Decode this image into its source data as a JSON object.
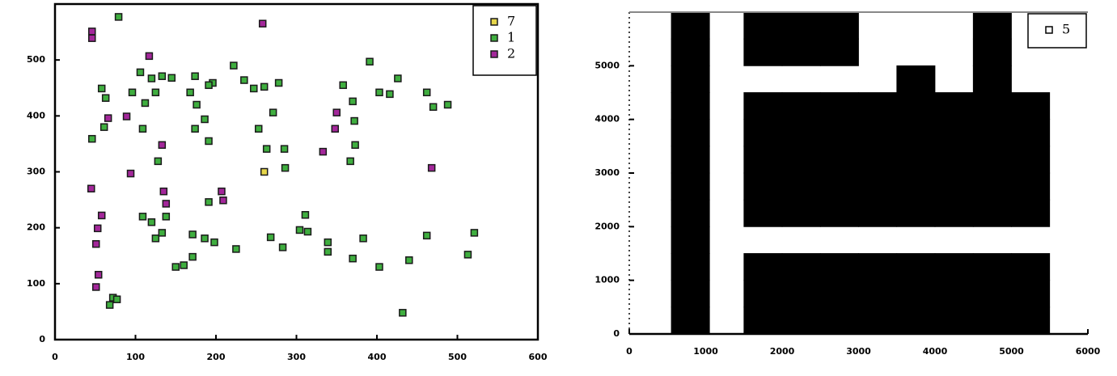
{
  "chart_data": [
    {
      "type": "scatter",
      "legend": "upper right",
      "xlim": [
        0,
        600
      ],
      "ylim": [
        0,
        600
      ],
      "xticks": [
        0,
        100,
        200,
        300,
        400,
        500,
        600
      ],
      "yticks": [
        0,
        100,
        200,
        300,
        400,
        500
      ],
      "series": [
        {
          "name": "7",
          "color": "#e6d64a",
          "x": [
            260
          ],
          "y": [
            300
          ]
        },
        {
          "name": "1",
          "color": "#3fae3f",
          "x": [
            79,
            46,
            58,
            63,
            61,
            106,
            120,
            133,
            145,
            112,
            125,
            96,
            109,
            128,
            174,
            168,
            176,
            174,
            191,
            196,
            186,
            222,
            235,
            247,
            260,
            278,
            271,
            253,
            263,
            285,
            286,
            391,
            358,
            370,
            372,
            373,
            367,
            403,
            416,
            426,
            462,
            470,
            488,
            191,
            109,
            120,
            125,
            138,
            133,
            171,
            186,
            198,
            171,
            160,
            150,
            225,
            268,
            283,
            311,
            304,
            314,
            339,
            339,
            370,
            383,
            403,
            440,
            462,
            513,
            521,
            432,
            72,
            68,
            77,
            191
          ],
          "y": [
            577,
            359,
            449,
            432,
            380,
            478,
            467,
            471,
            468,
            423,
            442,
            442,
            377,
            319,
            471,
            442,
            420,
            377,
            355,
            459,
            394,
            490,
            464,
            449,
            452,
            459,
            406,
            377,
            341,
            341,
            307,
            497,
            455,
            426,
            391,
            348,
            319,
            442,
            439,
            467,
            442,
            416,
            420,
            246,
            220,
            210,
            181,
            220,
            191,
            188,
            181,
            174,
            148,
            133,
            130,
            162,
            183,
            165,
            223,
            196,
            193,
            174,
            157,
            145,
            181,
            130,
            142,
            186,
            152,
            191,
            48,
            75,
            62,
            72,
            455
          ]
        },
        {
          "name": "2",
          "color": "#a3279a",
          "x": [
            46,
            46,
            258,
            117,
            89,
            66,
            350,
            348,
            133,
            333,
            94,
            468,
            45,
            135,
            138,
            207,
            209,
            58,
            53,
            51,
            51,
            54
          ],
          "y": [
            551,
            539,
            565,
            507,
            399,
            396,
            406,
            377,
            348,
            336,
            297,
            307,
            270,
            265,
            243,
            265,
            249,
            222,
            199,
            171,
            94,
            116
          ]
        }
      ]
    },
    {
      "type": "scatter",
      "legend": "upper right",
      "xlim": [
        0,
        6000
      ],
      "ylim": [
        0,
        6000
      ],
      "xticks": [
        0,
        1000,
        2000,
        3000,
        4000,
        5000,
        6000
      ],
      "yticks": [
        0,
        1000,
        2000,
        3000,
        4000,
        5000
      ],
      "series": [
        {
          "name": "5",
          "color": "#000000",
          "x": [
            800,
            800,
            800,
            800,
            800,
            800,
            800,
            800,
            800,
            800,
            800,
            800,
            1750,
            2250,
            2750,
            3250,
            3750,
            4250,
            4750,
            5250,
            1750,
            2250,
            2750,
            3250,
            3750,
            4250,
            4750,
            5250,
            1750,
            2250,
            2750,
            3250,
            3750,
            4250,
            4750,
            5250,
            1750,
            2250,
            2750,
            3250,
            3750,
            4250,
            4750,
            5250,
            1750,
            2250,
            2750,
            3250,
            3750,
            4250,
            4750,
            5250,
            1750,
            2250,
            2750,
            3250,
            3750,
            4250,
            4750,
            5250,
            1750,
            2250,
            2750,
            3250,
            3750,
            4250,
            4750,
            5250,
            1750,
            2250,
            2750,
            3250,
            3750,
            4250,
            4750,
            5250,
            1750,
            2250,
            2750,
            4750,
            1750,
            2250,
            2750,
            4750,
            3750,
            4750
          ],
          "y": [
            250,
            750,
            1250,
            1750,
            2250,
            2750,
            3250,
            3750,
            4250,
            4750,
            5250,
            5750,
            250,
            250,
            250,
            250,
            250,
            250,
            250,
            250,
            750,
            750,
            750,
            750,
            750,
            750,
            750,
            750,
            1250,
            1250,
            1250,
            1250,
            1250,
            1250,
            1250,
            1250,
            2250,
            2250,
            2250,
            2250,
            2250,
            2250,
            2250,
            2250,
            2750,
            2750,
            2750,
            2750,
            2750,
            2750,
            2750,
            2750,
            3250,
            3250,
            3250,
            3250,
            3250,
            3250,
            3250,
            3250,
            3750,
            3750,
            3750,
            3750,
            3750,
            3750,
            3750,
            3750,
            4250,
            4250,
            4250,
            4250,
            4250,
            4250,
            4250,
            4250,
            5250,
            5250,
            5250,
            5250,
            5750,
            5750,
            5750,
            5750,
            4750,
            4750
          ]
        }
      ]
    }
  ]
}
